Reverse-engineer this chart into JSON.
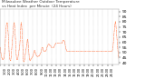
{
  "title_line1": "Milwaukee Weather Outdoor Temperature",
  "title_line2": "vs Heat Index  per Minute  (24 Hours)",
  "title_fontsize": 3.0,
  "title_color": "#333333",
  "background_color": "#ffffff",
  "plot_bg_color": "#ffffff",
  "line1_color": "#ff0000",
  "line2_color": "#ff8800",
  "ylim": [
    38,
    92
  ],
  "yticks": [
    40,
    45,
    50,
    55,
    60,
    65,
    70,
    75,
    80,
    85,
    90
  ],
  "ytick_fontsize": 3.2,
  "xtick_fontsize": 2.5,
  "grid_color": "#aaaaaa",
  "temp_data": [
    55,
    55,
    54,
    54,
    53,
    53,
    52,
    52,
    51,
    51,
    50,
    50,
    49,
    49,
    48,
    48,
    47,
    47,
    47,
    46,
    46,
    46,
    45,
    45,
    45,
    45,
    44,
    44,
    44,
    44,
    44,
    43,
    43,
    43,
    43,
    43,
    43,
    43,
    43,
    43,
    43,
    43,
    43,
    43,
    43,
    44,
    44,
    44,
    44,
    44,
    45,
    45,
    45,
    46,
    46,
    47,
    47,
    48,
    48,
    49,
    50,
    51,
    52,
    53,
    54,
    55,
    57,
    58,
    60,
    62,
    64,
    66,
    68,
    69,
    70,
    71,
    72,
    73,
    74,
    75,
    75,
    76,
    76,
    77,
    77,
    78,
    78,
    78,
    79,
    79,
    79,
    79,
    79,
    79,
    78,
    78,
    78,
    77,
    77,
    76,
    75,
    74,
    73,
    72,
    71,
    70,
    69,
    68,
    67,
    65,
    63,
    61,
    59,
    57,
    55,
    53,
    52,
    51,
    50,
    49,
    48,
    47,
    46,
    45,
    44,
    44,
    44,
    43,
    43,
    43,
    42,
    42,
    42,
    42,
    42,
    42,
    42,
    42,
    43,
    43,
    44,
    44,
    45,
    45,
    46,
    47,
    48,
    49,
    50,
    51,
    52,
    53,
    54,
    55,
    56,
    57,
    58,
    59,
    60,
    61,
    62,
    63,
    64,
    65,
    66,
    67,
    68,
    69,
    70,
    71,
    72,
    73,
    74,
    75,
    76,
    76,
    77,
    77,
    78,
    78,
    78,
    79,
    79,
    79,
    79,
    78,
    78,
    77,
    76,
    75,
    74,
    73,
    72,
    71,
    70,
    69,
    68,
    67,
    65,
    63,
    61,
    59,
    57,
    55,
    53,
    51,
    50,
    49,
    48,
    47,
    46,
    45,
    44,
    44,
    43,
    43,
    43,
    43,
    43,
    43,
    43,
    43,
    43,
    43,
    43,
    43,
    44,
    44,
    44,
    44,
    45,
    45,
    46,
    46,
    47,
    47,
    48,
    48,
    49,
    49,
    50,
    50,
    51,
    51,
    52,
    52,
    53,
    53,
    54,
    54,
    55,
    55,
    56,
    56,
    57,
    58,
    59,
    60,
    61,
    62,
    63,
    65,
    67,
    69,
    71,
    73,
    75,
    76,
    77,
    78,
    78,
    79,
    79,
    79,
    79,
    79,
    78,
    78,
    77,
    76,
    75,
    74,
    73,
    72,
    71,
    70,
    68,
    66,
    64,
    62,
    60,
    58,
    56,
    54,
    52,
    50,
    48,
    46,
    44,
    43,
    42,
    42,
    42,
    41,
    41,
    41,
    41,
    41,
    41,
    41,
    41,
    41,
    42,
    42,
    42,
    43,
    43,
    44,
    44,
    45,
    45,
    46,
    47,
    47,
    48,
    48,
    49,
    49,
    50,
    50,
    51,
    51,
    52,
    52,
    53,
    53,
    54,
    54,
    55,
    55,
    56,
    57,
    57,
    58,
    58,
    59,
    59,
    60,
    60,
    61,
    61,
    62,
    62,
    63,
    63,
    63,
    63,
    63,
    62,
    61,
    60,
    59,
    58,
    57,
    56,
    55,
    54,
    53,
    52,
    51,
    50,
    49,
    48,
    47,
    46,
    45,
    44,
    44,
    43,
    43,
    43,
    43,
    42,
    42,
    42,
    42,
    42,
    42,
    42,
    42,
    42,
    43,
    43,
    43,
    43,
    43,
    44,
    44,
    44,
    44,
    44,
    44,
    44,
    44,
    44,
    44,
    44,
    45,
    45,
    45,
    45,
    45,
    45,
    45,
    46,
    46,
    46,
    46,
    46,
    46,
    46,
    46,
    47,
    47,
    47,
    47,
    47,
    47,
    48,
    48,
    48,
    49,
    49,
    50,
    50,
    50,
    51,
    51,
    52,
    52,
    52,
    52,
    52,
    52,
    52,
    52,
    51,
    51,
    51,
    51,
    50,
    50,
    50,
    50,
    50,
    49,
    49,
    49,
    49,
    49,
    48,
    48,
    48,
    48,
    48,
    48,
    47,
    47,
    47,
    47,
    47,
    47,
    47,
    47,
    47,
    47,
    46,
    46,
    46,
    46,
    46,
    46,
    46,
    46,
    46,
    46,
    46,
    46,
    46,
    46,
    46,
    46,
    46,
    46,
    46,
    47,
    47,
    47,
    47,
    47,
    47,
    47,
    47,
    47,
    47,
    47,
    47,
    47,
    48,
    48,
    48,
    48,
    48,
    48,
    48,
    48,
    48,
    49,
    49,
    49,
    49,
    49,
    50,
    50,
    50,
    50,
    51,
    51,
    51,
    52,
    52,
    52,
    53,
    53,
    53,
    54,
    54,
    54,
    55,
    55,
    55,
    55,
    55,
    55,
    55,
    55,
    55,
    55,
    54,
    54,
    54,
    54,
    53,
    53,
    53,
    53,
    52,
    52,
    52,
    52,
    52,
    52,
    51,
    51,
    51,
    51,
    51,
    51,
    51,
    51,
    51,
    51,
    51,
    51,
    51,
    51,
    51,
    51,
    51,
    51,
    51,
    51,
    51,
    51,
    51,
    51,
    51,
    52,
    52,
    52,
    52,
    52,
    52,
    53,
    53,
    53,
    53,
    53,
    54,
    54,
    54,
    54,
    55,
    55,
    55,
    55,
    56,
    56,
    56,
    56,
    56,
    57,
    57,
    57,
    57,
    57,
    57,
    57,
    57,
    57,
    58,
    58,
    58,
    58,
    58,
    58,
    58,
    58,
    58,
    58,
    58,
    58,
    58,
    58,
    57,
    57,
    57,
    57,
    57,
    57,
    57,
    57,
    57,
    57,
    57,
    57,
    57,
    57,
    57,
    57,
    56,
    56,
    56,
    56,
    56,
    56,
    56,
    56,
    56,
    55,
    55,
    55,
    55,
    55,
    55,
    55,
    55,
    55,
    55,
    55,
    55,
    55,
    55,
    55,
    55,
    55,
    55,
    55,
    55,
    55,
    55,
    55,
    55,
    55,
    55,
    55,
    55,
    55,
    55,
    55,
    55,
    55,
    55,
    55,
    55,
    56,
    56,
    56,
    56,
    56,
    57,
    57,
    57,
    57,
    57,
    58,
    58,
    58,
    58,
    58,
    58,
    58,
    58,
    58,
    58,
    59,
    59,
    59,
    59,
    59,
    59,
    59,
    59,
    59,
    59,
    59,
    59,
    59,
    59,
    59,
    59,
    59,
    59,
    59,
    59,
    59,
    59,
    59,
    59,
    59,
    59,
    59,
    59,
    59,
    59,
    59,
    59,
    59,
    59,
    59,
    59,
    59,
    59,
    59,
    59,
    59,
    59,
    59,
    59,
    59,
    59,
    59,
    59,
    59,
    59,
    59,
    59,
    59,
    59,
    59,
    59,
    59,
    59,
    59,
    59,
    59,
    59,
    59,
    59,
    59,
    59,
    59,
    59,
    59,
    59,
    59,
    59,
    59,
    59,
    59,
    59,
    59,
    59,
    59,
    59,
    59,
    59,
    60,
    60,
    60,
    60,
    60,
    61,
    61,
    61,
    62,
    62,
    62,
    62,
    62,
    62,
    62,
    62,
    62,
    62,
    62,
    62,
    62,
    62,
    62,
    62,
    62,
    62,
    62,
    62,
    61,
    61,
    61,
    61,
    61,
    60,
    60,
    60,
    60,
    59,
    59,
    58,
    58,
    57,
    57,
    56,
    56,
    55,
    55,
    55,
    54,
    54,
    54,
    53,
    53,
    53,
    52,
    52,
    52,
    52,
    52,
    51,
    51,
    51,
    51,
    51,
    51,
    51,
    51,
    51,
    51,
    51,
    51,
    51,
    51,
    51,
    51,
    51,
    51,
    51,
    51,
    51,
    51,
    51,
    51,
    51,
    51,
    51,
    51,
    51,
    51,
    51,
    51,
    51,
    51,
    51,
    51,
    51,
    51,
    51,
    51,
    51,
    51,
    51,
    51,
    51,
    51,
    51,
    51,
    51,
    51,
    51,
    51,
    51,
    51,
    51,
    51,
    51,
    51,
    51,
    51,
    51,
    51,
    51,
    51,
    51,
    51,
    51,
    51,
    51,
    51,
    51,
    51,
    51,
    51,
    51,
    51,
    51,
    51,
    51,
    51,
    51,
    51,
    51,
    51,
    51,
    51,
    51,
    51,
    51,
    51,
    51,
    51,
    51,
    51,
    51,
    51,
    51,
    51,
    51,
    51,
    51,
    51,
    51,
    51,
    51,
    51,
    51,
    51,
    51,
    51,
    51,
    51,
    51,
    51,
    51,
    51,
    51,
    51,
    51,
    51,
    51,
    51,
    51,
    51,
    51,
    51,
    51,
    51,
    51,
    51,
    51,
    51,
    51,
    51,
    51,
    51,
    51,
    51,
    51,
    51,
    51,
    51,
    51,
    51,
    51,
    51,
    51,
    51,
    51,
    51,
    51,
    51,
    51,
    51,
    51,
    51,
    51,
    51,
    51,
    51,
    51,
    51,
    51,
    51,
    51,
    51,
    51,
    51,
    51,
    51,
    51,
    51,
    51,
    51,
    51,
    51,
    51,
    51,
    51,
    51,
    51,
    51,
    51,
    51,
    51,
    51,
    51,
    51,
    51,
    51,
    51,
    51,
    51,
    51,
    51,
    51,
    51,
    51,
    51,
    51,
    51,
    51,
    51,
    51,
    51,
    51,
    51,
    51,
    51,
    51,
    51,
    51,
    51,
    51,
    51,
    51,
    51,
    51,
    51,
    51,
    51,
    51,
    51,
    51,
    51,
    51,
    51,
    51,
    51,
    51,
    51,
    51,
    51,
    51,
    51,
    51,
    51,
    51,
    51,
    51,
    51,
    51,
    51,
    51,
    51,
    51,
    51,
    51,
    51,
    51,
    51,
    51,
    51,
    51,
    51,
    51,
    51,
    51,
    51,
    51,
    51,
    51,
    51,
    51,
    51,
    51,
    51,
    51,
    51,
    51,
    51,
    51,
    51,
    51,
    51,
    51,
    51,
    51,
    51,
    51,
    51,
    51,
    51,
    51,
    51,
    51,
    51,
    51,
    51,
    51,
    51,
    51,
    51,
    51,
    51,
    51,
    51,
    51,
    51,
    51,
    51,
    51,
    51,
    51,
    51,
    51,
    51,
    51,
    51,
    51,
    51,
    51,
    51,
    51,
    51,
    51,
    51,
    51,
    51,
    51,
    51,
    51,
    51,
    51,
    51,
    51,
    51,
    51,
    51,
    51,
    51,
    51,
    51,
    51,
    51,
    51,
    51,
    51,
    51,
    51,
    51,
    51,
    51,
    51,
    51,
    51,
    51,
    51,
    51,
    51,
    51,
    51,
    51,
    51,
    51,
    51,
    51,
    51,
    51,
    51,
    51,
    51,
    51,
    51,
    51,
    51,
    51,
    51,
    51,
    51,
    51,
    51,
    51,
    51,
    51,
    51,
    51,
    51,
    51,
    51,
    51,
    51,
    51,
    51,
    51,
    51,
    51,
    51,
    51,
    51,
    51,
    51,
    51,
    51,
    51,
    51,
    51,
    51,
    51,
    51,
    51,
    51,
    51,
    51,
    51,
    51,
    51,
    51,
    51,
    51,
    51,
    51,
    51,
    51,
    51,
    51,
    51,
    51,
    51,
    51,
    51,
    51,
    51,
    51,
    51,
    51,
    51,
    51,
    51,
    51,
    51,
    51,
    51,
    51,
    51,
    51,
    51,
    51,
    51,
    51,
    51,
    51,
    51,
    51,
    51,
    51,
    51,
    51,
    51,
    51,
    51,
    51,
    51,
    51,
    51,
    51,
    51,
    51,
    51,
    51,
    51,
    51,
    51,
    51,
    51,
    51,
    51,
    51,
    51,
    51,
    51,
    51,
    51,
    51,
    51,
    51,
    51,
    51,
    51,
    51,
    51,
    51,
    51,
    51,
    51,
    51,
    51,
    51,
    51,
    51,
    51,
    51,
    51,
    51,
    51,
    51,
    51,
    51,
    51,
    51,
    51,
    51,
    51,
    51,
    51,
    51,
    51,
    51,
    51,
    51,
    51,
    51,
    51,
    51,
    51,
    51,
    51,
    51,
    51,
    51,
    51,
    51,
    51,
    51,
    51,
    51,
    51,
    51,
    51,
    51,
    51,
    51,
    51,
    51,
    51,
    51,
    51,
    51,
    51,
    51,
    51,
    51,
    51,
    51,
    51,
    51,
    51,
    51,
    51,
    51,
    51,
    51,
    51,
    51,
    51,
    51,
    51,
    51,
    51,
    51,
    51,
    51,
    51,
    51,
    51,
    51,
    51,
    51,
    51,
    51,
    51,
    51,
    51,
    51,
    51,
    51,
    51,
    51,
    51,
    51,
    51,
    51,
    51,
    51,
    51,
    52,
    52,
    52,
    52,
    53,
    53,
    53,
    54,
    54,
    55,
    55,
    56,
    56,
    57,
    58,
    59,
    60,
    61,
    62,
    63,
    64,
    65,
    66,
    67,
    68,
    69,
    70,
    71,
    72,
    73,
    74,
    75,
    76,
    77,
    77,
    78,
    78,
    78,
    79,
    79,
    79,
    79,
    79,
    80,
    80,
    79,
    79,
    78,
    77,
    76,
    75,
    74,
    73,
    72,
    71,
    70,
    69,
    68,
    67,
    66,
    65,
    64,
    63,
    62,
    61,
    60,
    59,
    58,
    57,
    56,
    55,
    54,
    53,
    52,
    51,
    50,
    49,
    49,
    48,
    47,
    47,
    46,
    46,
    45,
    45,
    44,
    44
  ],
  "x_tick_positions": [
    0,
    60,
    120,
    180,
    240,
    300,
    360,
    420,
    480,
    540,
    600,
    660,
    720,
    780,
    840,
    900,
    960,
    1020,
    1080,
    1140,
    1200,
    1260,
    1320,
    1380,
    1439
  ],
  "x_tick_labels": [
    "0:00",
    "1:00",
    "2:00",
    "3:00",
    "4:00",
    "5:00",
    "6:00",
    "7:00",
    "8:00",
    "9:00",
    "10:00",
    "11:00",
    "12:00",
    "13:00",
    "14:00",
    "15:00",
    "16:00",
    "17:00",
    "18:00",
    "19:00",
    "20:00",
    "21:00",
    "22:00",
    "23:00",
    "24:00"
  ]
}
